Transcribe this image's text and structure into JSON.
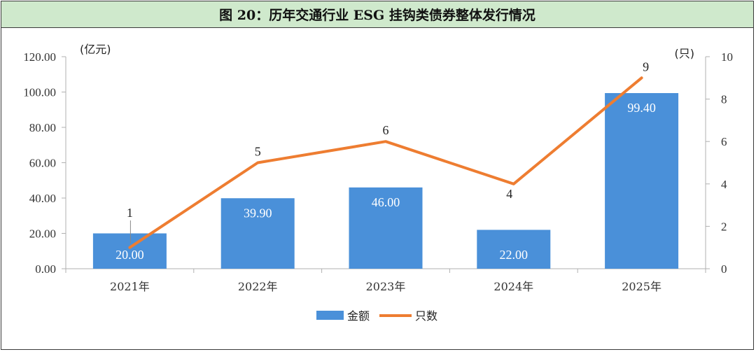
{
  "title": "图 20：历年交通行业 ESG 挂钩类债券整体发行情况",
  "chart_data": {
    "type": "bar",
    "categories": [
      "2021年",
      "2022年",
      "2023年",
      "2024年",
      "2025年"
    ],
    "series": [
      {
        "name": "金额",
        "type": "bar",
        "axis": "left",
        "values": [
          20.0,
          39.9,
          46.0,
          22.0,
          99.4
        ],
        "labels": [
          "20.00",
          "39.90",
          "46.00",
          "22.00",
          "99.40"
        ],
        "color": "#4a90d9"
      },
      {
        "name": "只数",
        "type": "line",
        "axis": "right",
        "values": [
          1,
          5,
          6,
          4,
          9
        ],
        "labels": [
          "1",
          "5",
          "6",
          "4",
          "9"
        ],
        "color": "#ee7d31"
      }
    ],
    "left_axis": {
      "unit": "(亿元)",
      "ylim": [
        0,
        120
      ],
      "ticks": [
        "0.00",
        "20.00",
        "40.00",
        "60.00",
        "80.00",
        "100.00",
        "120.00"
      ]
    },
    "right_axis": {
      "unit": "(只)",
      "ylim": [
        0,
        10
      ],
      "ticks": [
        "0",
        "2",
        "4",
        "6",
        "8",
        "10"
      ]
    },
    "grid": false,
    "legend_position": "bottom"
  }
}
